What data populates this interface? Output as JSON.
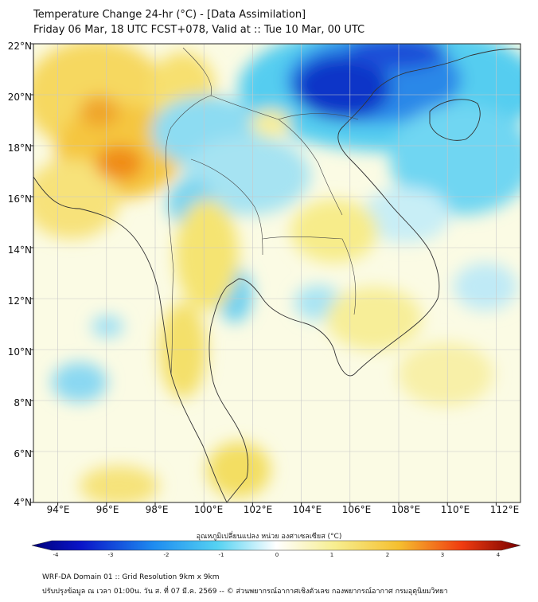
{
  "header": {
    "title_line1": "Temperature Change 24-hr (°C) - [Data Assimilation]",
    "title_line2": "Friday 06 Mar, 18 UTC FCST+078, Valid at :: Tue 10 Mar, 00 UTC"
  },
  "map": {
    "lat_labels": [
      "22°N",
      "20°N",
      "18°N",
      "16°N",
      "14°N",
      "12°N",
      "10°N",
      "8°N",
      "6°N",
      "4°N"
    ],
    "lon_labels": [
      "94°E",
      "96°E",
      "98°E",
      "100°E",
      "102°E",
      "104°E",
      "106°E",
      "108°E",
      "110°E",
      "112°E"
    ],
    "lat_range": [
      4,
      22
    ],
    "lon_range": [
      93,
      113
    ]
  },
  "colorbar": {
    "label": "อุณหภูมิเปลี่ยนแปลง หน่วย องศาเซลเซียส (°C)",
    "ticks": [
      "-4",
      "-3",
      "-2",
      "-1",
      "0",
      "1",
      "2",
      "3",
      "4"
    ],
    "range": [
      -4,
      4
    ]
  },
  "footer": {
    "line1": "WRF-DA Domain 01 :: Grid Resolution 9km x 9km",
    "line2": "ปรับปรุงข้อมูล ณ เวลา 01:00น. วัน ส. ที่ 07 มี.ค. 2569 -- © ส่วนพยากรณ์อากาศเชิงตัวเลข กองพยากรณ์อากาศ กรมอุตุนิยมวิทยา"
  },
  "colors": {
    "deep_cold": "#0a14c8",
    "cold": "#3cc8f0",
    "neutral": "#ffffff",
    "warm": "#f0e050",
    "hot": "#f08c0a"
  }
}
